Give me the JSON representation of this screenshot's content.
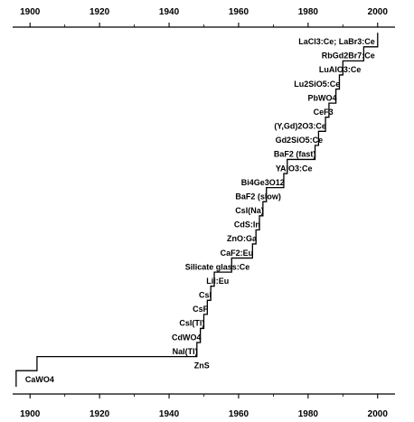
{
  "chart_data": {
    "type": "line",
    "step": true,
    "title": "",
    "xlabel": "",
    "ylabel": "",
    "xlim": [
      1895,
      2005
    ],
    "x_ticks": [
      1900,
      1920,
      1940,
      1960,
      1980,
      2000
    ],
    "x_tick_labels": [
      "1900",
      "1920",
      "1940",
      "1960",
      "1980",
      "2000"
    ],
    "tick_labels_top": true,
    "tick_labels_bottom": true,
    "grid": false,
    "series": [
      {
        "points": [
          {
            "year": 1896,
            "label": "CaWO4"
          },
          {
            "year": 1902,
            "label": "ZnS"
          },
          {
            "year": 1948,
            "label": "NaI(Tl)"
          },
          {
            "year": 1949,
            "label": "CdWO4"
          },
          {
            "year": 1950,
            "label": "CsI(Tl)"
          },
          {
            "year": 1951,
            "label": "CsF"
          },
          {
            "year": 1952,
            "label": "CsI"
          },
          {
            "year": 1953,
            "label": "LiI:Eu"
          },
          {
            "year": 1958,
            "label": "Silicate glass:Ce"
          },
          {
            "year": 1964,
            "label": "CaF2:Eu"
          },
          {
            "year": 1965,
            "label": "ZnO:Ga"
          },
          {
            "year": 1966,
            "label": "CdS:In"
          },
          {
            "year": 1967,
            "label": "CsI(Na)"
          },
          {
            "year": 1968,
            "label": "BaF2 (slow)"
          },
          {
            "year": 1973,
            "label": "Bi4Ge3O12"
          },
          {
            "year": 1974,
            "label": "YAlO3:Ce"
          },
          {
            "year": 1982,
            "label": "BaF2 (fast)"
          },
          {
            "year": 1983,
            "label": "Gd2SiO5:Ce"
          },
          {
            "year": 1985,
            "label": "(Y,Gd)2O3:Ce"
          },
          {
            "year": 1986,
            "label": "CeF3"
          },
          {
            "year": 1988,
            "label": "PbWO4"
          },
          {
            "year": 1989,
            "label": "Lu2SiO5:Ce"
          },
          {
            "year": 1990,
            "label": "LuAlO3:Ce"
          },
          {
            "year": 1996,
            "label": "RbGd2Br7:Ce"
          },
          {
            "year": 2000,
            "label": "LaCl3:Ce; LaBr3:Ce"
          }
        ]
      }
    ]
  }
}
